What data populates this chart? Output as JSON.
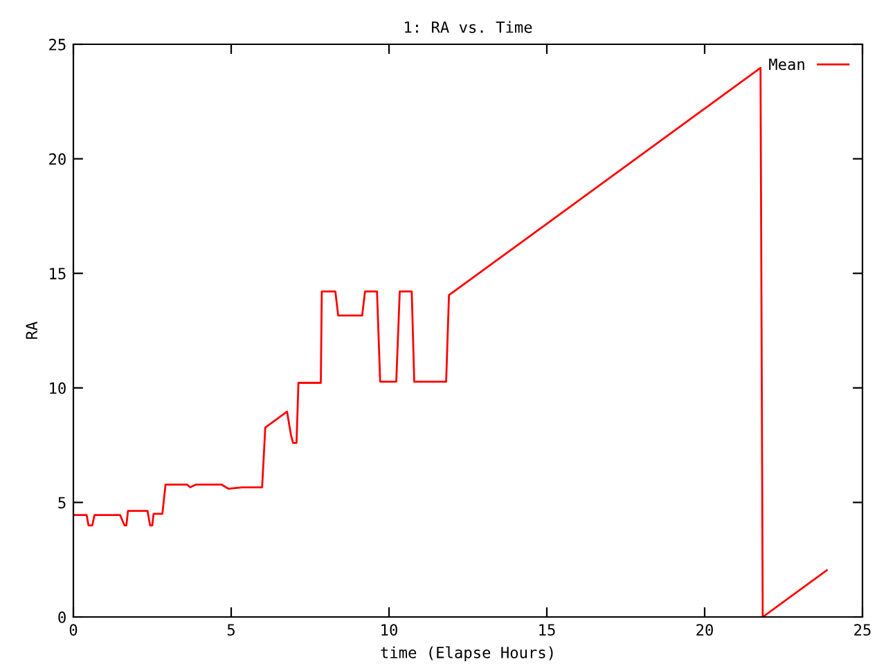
{
  "chart_data": {
    "type": "line",
    "title": "1: RA vs. Time",
    "xlabel": "time (Elapse Hours)",
    "ylabel": "RA",
    "xlim": [
      0,
      25
    ],
    "ylim": [
      0,
      25
    ],
    "xticks": [
      0,
      5,
      10,
      15,
      20,
      25
    ],
    "yticks": [
      0,
      5,
      10,
      15,
      20,
      25
    ],
    "grid": false,
    "legend": "top right",
    "marker": "none",
    "line_style": "solid",
    "series": [
      {
        "name": "Mean",
        "color": "#ff0000",
        "x": [
          0,
          0.42,
          0.48,
          0.6,
          0.67,
          1.48,
          1.62,
          1.68,
          1.73,
          2.35,
          2.43,
          2.5,
          2.54,
          2.82,
          2.92,
          3.6,
          3.7,
          3.89,
          4.69,
          4.91,
          5.35,
          5.98,
          6.08,
          6.77,
          6.89,
          6.96,
          7.07,
          7.13,
          7.84,
          7.87,
          8.3,
          8.39,
          9.15,
          9.24,
          9.62,
          9.72,
          10.23,
          10.34,
          10.72,
          10.8,
          11.81,
          11.9,
          21.77,
          21.84,
          23.87
        ],
        "values": [
          4.45,
          4.45,
          4.0,
          4.0,
          4.45,
          4.45,
          4.0,
          4.0,
          4.63,
          4.63,
          4.0,
          4.0,
          4.5,
          4.5,
          5.78,
          5.78,
          5.66,
          5.78,
          5.78,
          5.6,
          5.66,
          5.66,
          8.27,
          8.96,
          7.97,
          7.6,
          7.6,
          10.22,
          10.22,
          14.21,
          14.21,
          13.16,
          13.16,
          14.21,
          14.21,
          10.27,
          10.27,
          14.21,
          14.21,
          10.27,
          10.27,
          14.05,
          23.97,
          0,
          2.04
        ]
      }
    ]
  }
}
